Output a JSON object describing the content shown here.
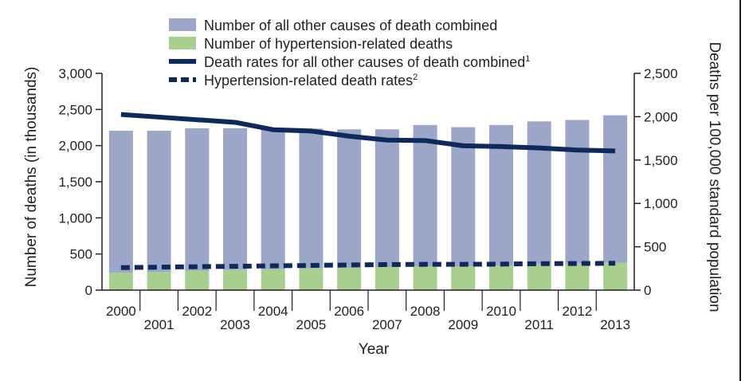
{
  "chart_data": {
    "type": "bar",
    "categories": [
      "2000",
      "2001",
      "2002",
      "2003",
      "2004",
      "2005",
      "2006",
      "2007",
      "2008",
      "2009",
      "2010",
      "2011",
      "2012",
      "2013"
    ],
    "series": [
      {
        "name": "Number of hypertension-related deaths",
        "kind": "bar",
        "axis": "left",
        "color": "#a8cf8e",
        "values": [
          240,
          250,
          270,
          280,
          290,
          300,
          310,
          320,
          330,
          330,
          340,
          355,
          365,
          380
        ]
      },
      {
        "name": "Number of all other causes of death combined",
        "kind": "bar",
        "axis": "left",
        "color": "#9ba6c8",
        "values": [
          1965,
          1955,
          1970,
          1960,
          1945,
          1935,
          1915,
          1905,
          1955,
          1925,
          1945,
          1980,
          1990,
          2040
        ]
      },
      {
        "name": "Death rates for all other causes of death combined",
        "superscript": "1",
        "kind": "line",
        "axis": "right",
        "color": "#0e2a5c",
        "values": [
          2025,
          1995,
          1965,
          1935,
          1850,
          1835,
          1775,
          1730,
          1725,
          1665,
          1655,
          1640,
          1615,
          1605
        ]
      },
      {
        "name": "Hypertension-related death rates",
        "superscript": "2",
        "kind": "line-dashed",
        "axis": "right",
        "color": "#0e2a5c",
        "values": [
          260,
          265,
          270,
          275,
          280,
          285,
          290,
          295,
          297,
          298,
          300,
          305,
          307,
          310
        ]
      }
    ],
    "stacked": true,
    "xlabel": "Year",
    "ylabel": "Number of deaths (in thousands)",
    "y2label": "Deaths per 100,000 standard population",
    "ylim": [
      0,
      3000
    ],
    "y2lim": [
      0,
      2500
    ],
    "yticks": [
      "0",
      "500",
      "1,000",
      "1,500",
      "2,000",
      "2,500",
      "3,000"
    ],
    "y2ticks": [
      "0",
      "500",
      "1,000",
      "1,500",
      "2,000",
      "2,500"
    ],
    "grid": false,
    "legend_position": "top"
  }
}
